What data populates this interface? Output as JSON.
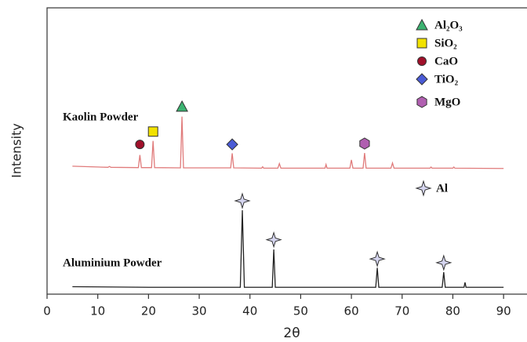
{
  "chart_data": {
    "type": "line",
    "xlabel": "2θ",
    "ylabel": "Intensity",
    "xlim": [
      0,
      94
    ],
    "ylim": [
      0,
      100
    ],
    "xticks": [
      0,
      10,
      20,
      30,
      40,
      50,
      60,
      70,
      80,
      90
    ],
    "series": [
      {
        "name": "Kaolin Powder",
        "color": "#e07b7b",
        "x": [
          5,
          12,
          12.3,
          12.6,
          18.0,
          18.3,
          18.6,
          20.6,
          20.9,
          21.2,
          26.3,
          26.6,
          26.9,
          36.2,
          36.5,
          36.8,
          42.3,
          42.5,
          42.7,
          45.5,
          45.8,
          46.1,
          54.8,
          55.0,
          55.2,
          59.7,
          60.0,
          60.3,
          62.3,
          62.6,
          62.9,
          67.8,
          68.1,
          68.4,
          75.5,
          75.7,
          75.9,
          80,
          80.2,
          80.4,
          90
        ],
        "values": [
          44.7,
          44.3,
          44.6,
          44.3,
          44.2,
          48.6,
          44.2,
          44.2,
          53.5,
          44.2,
          44.1,
          62.0,
          44.1,
          44.1,
          49.2,
          44.1,
          44.0,
          44.5,
          44.0,
          44.0,
          45.6,
          44.0,
          44.0,
          45.3,
          44.0,
          44.0,
          46.9,
          44.0,
          44.0,
          49.3,
          44.0,
          44.0,
          45.8,
          44.0,
          44.0,
          44.4,
          44.0,
          44.0,
          44.4,
          44.0,
          43.9
        ]
      },
      {
        "name": "Aluminium Powder",
        "color": "#222222",
        "x": [
          5,
          20,
          38.1,
          38.5,
          38.9,
          44.4,
          44.7,
          45.0,
          64.8,
          65.1,
          65.4,
          77.9,
          78.2,
          78.5,
          82.2,
          82.4,
          82.6,
          90
        ],
        "values": [
          2.6,
          2.4,
          2.4,
          29.3,
          2.4,
          2.4,
          15.6,
          2.4,
          2.4,
          9.2,
          2.4,
          2.4,
          7.7,
          2.4,
          2.4,
          4.1,
          2.4,
          2.4
        ]
      }
    ],
    "legend": [
      {
        "name": "Al₂O₃",
        "shape": "triangle",
        "color": "#3cb371"
      },
      {
        "name": "SiO₂",
        "shape": "square",
        "color": "#f2e200"
      },
      {
        "name": "CaO",
        "shape": "circle",
        "color": "#a0102a"
      },
      {
        "name": "TiO₂",
        "shape": "diamond",
        "color": "#4a5bd6"
      },
      {
        "name": "MgO",
        "shape": "hexagon",
        "color": "#b05fb0"
      },
      {
        "name": "Al",
        "shape": "star",
        "color": "#d6d6f0"
      }
    ],
    "peak_markers": [
      {
        "x": 18.3,
        "y": 52.3,
        "phase": 2
      },
      {
        "x": 20.9,
        "y": 56.8,
        "phase": 1
      },
      {
        "x": 26.6,
        "y": 65.5,
        "phase": 0
      },
      {
        "x": 36.5,
        "y": 52.3,
        "phase": 3
      },
      {
        "x": 62.6,
        "y": 52.6,
        "phase": 4
      },
      {
        "x": 38.5,
        "y": 32.6,
        "phase": 5
      },
      {
        "x": 44.7,
        "y": 19.0,
        "phase": 5
      },
      {
        "x": 65.1,
        "y": 12.3,
        "phase": 5
      },
      {
        "x": 78.2,
        "y": 11.0,
        "phase": 5
      }
    ]
  }
}
